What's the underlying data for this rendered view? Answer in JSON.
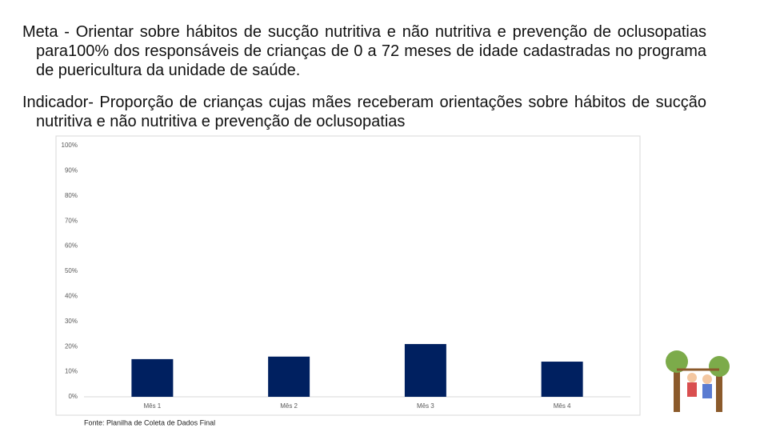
{
  "slide": {
    "meta": "Meta - Orientar sobre hábitos de sucção nutritiva e não nutritiva e prevenção de oclusopatias para100%  dos responsáveis de crianças de 0 a 72 meses de idade cadastradas no programa de puericultura da unidade de saúde.",
    "indicator": "Indicador- Proporção de crianças cujas mães receberam orientações sobre hábitos de sucção nutritiva e não nutritiva e prevenção de oclusopatias"
  },
  "chart_data": {
    "type": "bar",
    "categories": [
      "Mês 1",
      "Mês 2",
      "Mês 3",
      "Mês 4"
    ],
    "values": [
      15,
      16,
      21,
      14
    ],
    "color": "#002060",
    "ylim": [
      0,
      100
    ],
    "yticks": [
      {
        "value": 0,
        "label": "0%"
      },
      {
        "value": 10,
        "label": "10%"
      },
      {
        "value": 20,
        "label": "20%"
      },
      {
        "value": 30,
        "label": "30%"
      },
      {
        "value": 40,
        "label": "40%"
      },
      {
        "value": 50,
        "label": "50%"
      },
      {
        "value": 60,
        "label": "60%"
      },
      {
        "value": 70,
        "label": "70%"
      },
      {
        "value": 80,
        "label": "80%"
      },
      {
        "value": 90,
        "label": "90%"
      },
      {
        "value": 100,
        "label": "100%"
      }
    ],
    "grid": false,
    "source": "Fonte: Planilha de Coleta de Dados Final"
  }
}
